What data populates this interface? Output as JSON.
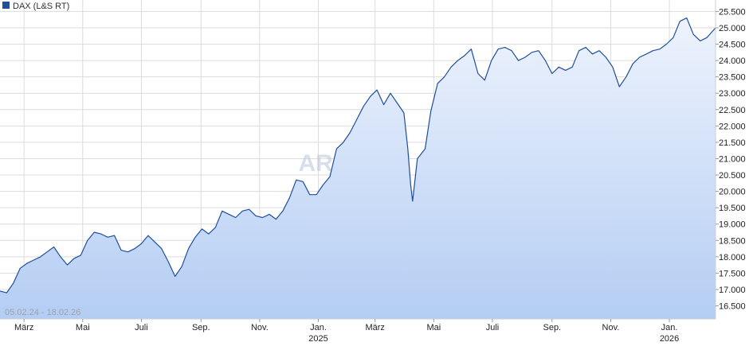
{
  "chart_data": {
    "type": "area",
    "legend": {
      "label": "DAX (L&S RT)",
      "position": "top-left",
      "color": "#1f4e9c"
    },
    "date_range_label": "05.02.24 - 18.02.26",
    "watermark": "ARIVA.DE",
    "x_range": [
      "2024-02-05",
      "2026-02-18"
    ],
    "ylim": [
      16100,
      25850
    ],
    "y_ticks": [
      {
        "value": 16500,
        "label": "16.500"
      },
      {
        "value": 17000,
        "label": "17.000"
      },
      {
        "value": 17500,
        "label": "17.500"
      },
      {
        "value": 18000,
        "label": "18.000"
      },
      {
        "value": 18500,
        "label": "18.500"
      },
      {
        "value": 19000,
        "label": "19.000"
      },
      {
        "value": 19500,
        "label": "19.500"
      },
      {
        "value": 20000,
        "label": "20.000"
      },
      {
        "value": 20500,
        "label": "20.500"
      },
      {
        "value": 21000,
        "label": "21.000"
      },
      {
        "value": 21500,
        "label": "21.500"
      },
      {
        "value": 22000,
        "label": "22.000"
      },
      {
        "value": 22500,
        "label": "22.500"
      },
      {
        "value": 23000,
        "label": "23.000"
      },
      {
        "value": 23500,
        "label": "23.500"
      },
      {
        "value": 24000,
        "label": "24.000"
      },
      {
        "value": 24500,
        "label": "24.500"
      },
      {
        "value": 25000,
        "label": "25.000"
      },
      {
        "value": 25500,
        "label": "25.500"
      }
    ],
    "x_ticks": [
      {
        "date": "2024-03-01",
        "label": "März"
      },
      {
        "date": "2024-05-01",
        "label": "Mai"
      },
      {
        "date": "2024-07-01",
        "label": "Juli"
      },
      {
        "date": "2024-09-01",
        "label": "Sep."
      },
      {
        "date": "2024-11-01",
        "label": "Nov."
      },
      {
        "date": "2025-01-01",
        "label": "Jan.",
        "year": "2025"
      },
      {
        "date": "2025-03-01",
        "label": "März"
      },
      {
        "date": "2025-05-01",
        "label": "Mai"
      },
      {
        "date": "2025-07-01",
        "label": "Juli"
      },
      {
        "date": "2025-09-01",
        "label": "Sep."
      },
      {
        "date": "2025-11-01",
        "label": "Nov."
      },
      {
        "date": "2026-01-01",
        "label": "Jan.",
        "year": "2026"
      }
    ],
    "grid": true,
    "colors": {
      "line": "#1f4e9c",
      "fill_top": "#eef3fd",
      "fill_bottom": "#b4cdf3",
      "grid": "#dcdcdc"
    },
    "series": [
      {
        "x": [
          "2024-02-05",
          "2024-02-12",
          "2024-02-19",
          "2024-02-26",
          "2024-03-04",
          "2024-03-11",
          "2024-03-18",
          "2024-03-25",
          "2024-04-01",
          "2024-04-08",
          "2024-04-15",
          "2024-04-22",
          "2024-04-29",
          "2024-05-06",
          "2024-05-13",
          "2024-05-20",
          "2024-05-27",
          "2024-06-03",
          "2024-06-10",
          "2024-06-17",
          "2024-06-24",
          "2024-07-01",
          "2024-07-08",
          "2024-07-15",
          "2024-07-22",
          "2024-07-29",
          "2024-08-05",
          "2024-08-12",
          "2024-08-19",
          "2024-08-26",
          "2024-09-02",
          "2024-09-09",
          "2024-09-16",
          "2024-09-23",
          "2024-09-30",
          "2024-10-07",
          "2024-10-14",
          "2024-10-21",
          "2024-10-28",
          "2024-11-04",
          "2024-11-11",
          "2024-11-18",
          "2024-11-25",
          "2024-12-02",
          "2024-12-09",
          "2024-12-16",
          "2024-12-23",
          "2024-12-30",
          "2025-01-06",
          "2025-01-13",
          "2025-01-20",
          "2025-01-27",
          "2025-02-03",
          "2025-02-10",
          "2025-02-17",
          "2025-02-24",
          "2025-03-03",
          "2025-03-10",
          "2025-03-17",
          "2025-03-24",
          "2025-03-31",
          "2025-04-04",
          "2025-04-07",
          "2025-04-09",
          "2025-04-14",
          "2025-04-22",
          "2025-04-28",
          "2025-05-05",
          "2025-05-12",
          "2025-05-19",
          "2025-05-26",
          "2025-06-02",
          "2025-06-09",
          "2025-06-16",
          "2025-06-23",
          "2025-06-30",
          "2025-07-07",
          "2025-07-14",
          "2025-07-21",
          "2025-07-28",
          "2025-08-04",
          "2025-08-11",
          "2025-08-18",
          "2025-08-25",
          "2025-09-01",
          "2025-09-08",
          "2025-09-15",
          "2025-09-22",
          "2025-09-29",
          "2025-10-06",
          "2025-10-13",
          "2025-10-20",
          "2025-10-27",
          "2025-11-03",
          "2025-11-10",
          "2025-11-17",
          "2025-11-24",
          "2025-12-01",
          "2025-12-08",
          "2025-12-15",
          "2025-12-22",
          "2025-12-29",
          "2026-01-05",
          "2026-01-12",
          "2026-01-19",
          "2026-01-26",
          "2026-02-02",
          "2026-02-09",
          "2026-02-18"
        ],
        "values": [
          16950,
          16900,
          17200,
          17650,
          17800,
          17900,
          18000,
          18150,
          18300,
          18000,
          17750,
          17950,
          18050,
          18500,
          18750,
          18700,
          18600,
          18650,
          18200,
          18150,
          18250,
          18400,
          18650,
          18450,
          18250,
          17850,
          17400,
          17700,
          18250,
          18600,
          18850,
          18700,
          18900,
          19400,
          19300,
          19200,
          19400,
          19450,
          19250,
          19200,
          19300,
          19150,
          19400,
          19800,
          20350,
          20300,
          19900,
          19900,
          20200,
          20450,
          21300,
          21500,
          21800,
          22200,
          22600,
          22900,
          23100,
          22650,
          23000,
          22700,
          22400,
          21300,
          20200,
          19700,
          21000,
          21300,
          22450,
          23300,
          23500,
          23800,
          24000,
          24150,
          24350,
          23600,
          23400,
          24000,
          24350,
          24400,
          24300,
          24000,
          24100,
          24250,
          24300,
          24000,
          23600,
          23800,
          23700,
          23800,
          24300,
          24400,
          24200,
          24300,
          24100,
          23800,
          23200,
          23500,
          23900,
          24100,
          24200,
          24300,
          24350,
          24500,
          24700,
          25200,
          25300,
          24800,
          24600,
          24700,
          25000
        ]
      }
    ]
  }
}
